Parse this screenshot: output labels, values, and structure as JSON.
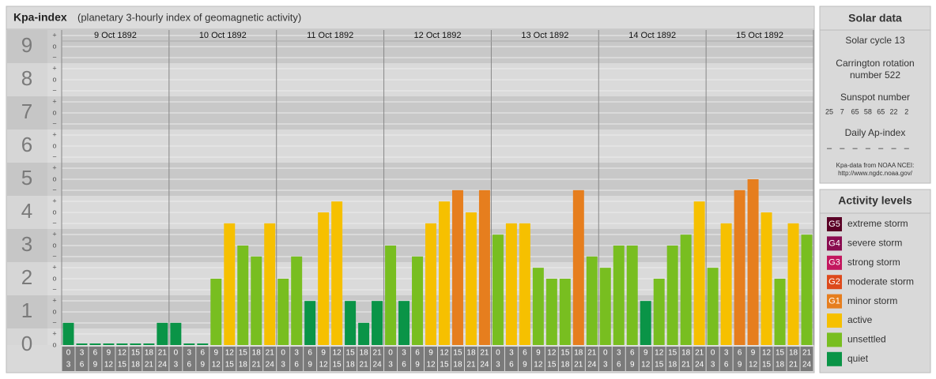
{
  "chart_data": {
    "type": "bar",
    "title": "Kpa-index",
    "subtitle": "(planetary 3-hourly index of geomagnetic activity)",
    "days": [
      "9 Oct 1892",
      "10 Oct 1892",
      "11 Oct 1892",
      "12 Oct 1892",
      "13 Oct 1892",
      "14 Oct 1892",
      "15 Oct 1892"
    ],
    "hour_starts": [
      0,
      3,
      6,
      9,
      12,
      15,
      18,
      21
    ],
    "hour_ends": [
      3,
      6,
      9,
      12,
      15,
      18,
      21,
      24
    ],
    "values": [
      0.67,
      0,
      0,
      0,
      0,
      0,
      0,
      0.67,
      0.67,
      0,
      0,
      2,
      3.67,
      3,
      2.67,
      3.67,
      2,
      2.67,
      1.33,
      4,
      4.33,
      1.33,
      0.67,
      1.33,
      3,
      1.33,
      2.67,
      3.67,
      4.33,
      4.67,
      4,
      4.67,
      3.33,
      3.67,
      3.67,
      2.33,
      2,
      2,
      4.67,
      2.67,
      2.33,
      3,
      3,
      1.33,
      2,
      3,
      3.33,
      4.33,
      2.33,
      3.67,
      4.67,
      5,
      4,
      2,
      3.67,
      3.33
    ],
    "colors": [
      "#0a9447",
      "#0a9447",
      "#0a9447",
      "#0a9447",
      "#0a9447",
      "#0a9447",
      "#0a9447",
      "#0a9447",
      "#0a9447",
      "#0a9447",
      "#0a9447",
      "#78be20",
      "#f6c000",
      "#78be20",
      "#78be20",
      "#f6c000",
      "#78be20",
      "#78be20",
      "#0a9447",
      "#f6c000",
      "#f6c000",
      "#0a9447",
      "#0a9447",
      "#0a9447",
      "#78be20",
      "#0a9447",
      "#78be20",
      "#f6c000",
      "#f6c000",
      "#e67e1e",
      "#f6c000",
      "#e67e1e",
      "#78be20",
      "#f6c000",
      "#f6c000",
      "#78be20",
      "#78be20",
      "#78be20",
      "#e67e1e",
      "#78be20",
      "#78be20",
      "#78be20",
      "#78be20",
      "#0a9447",
      "#78be20",
      "#78be20",
      "#78be20",
      "#f6c000",
      "#78be20",
      "#f6c000",
      "#e67e1e",
      "#e67e1e",
      "#f6c000",
      "#78be20",
      "#f6c000",
      "#78be20"
    ],
    "ylim": [
      0,
      9.5
    ],
    "yticks": [
      0,
      1,
      2,
      3,
      4,
      5,
      6,
      7,
      8,
      9
    ],
    "sub_labels": {
      "minus": "−",
      "zero": "o",
      "plus": "+"
    },
    "grid": true
  },
  "solar_data": {
    "title": "Solar data",
    "cycle": "Solar cycle 13",
    "rotation": [
      "Carrington rotation",
      "number 522"
    ],
    "sunspot_title": "Sunspot number",
    "sunspots": [
      25,
      7,
      65,
      58,
      65,
      22,
      2
    ],
    "ap_title": "Daily Ap-index",
    "ap": [
      "–",
      "–",
      "–",
      "–",
      "–",
      "–",
      "–"
    ],
    "source": [
      "Kpa-data from NOAA NCEI:",
      "http://www.ngdc.noaa.gov/"
    ]
  },
  "activity_levels": {
    "title": "Activity levels",
    "levels": [
      {
        "badge": "G5",
        "name": "extreme storm",
        "color": "#5a0026"
      },
      {
        "badge": "G4",
        "name": "severe storm",
        "color": "#8a0c50"
      },
      {
        "badge": "G3",
        "name": "strong storm",
        "color": "#c3175e"
      },
      {
        "badge": "G2",
        "name": "moderate storm",
        "color": "#dd4a1c"
      },
      {
        "badge": "G1",
        "name": "minor storm",
        "color": "#e67e1e"
      },
      {
        "name": "active",
        "color": "#f6c000"
      },
      {
        "name": "unsettled",
        "color": "#78be20"
      },
      {
        "name": "quiet",
        "color": "#0a9447"
      }
    ]
  }
}
